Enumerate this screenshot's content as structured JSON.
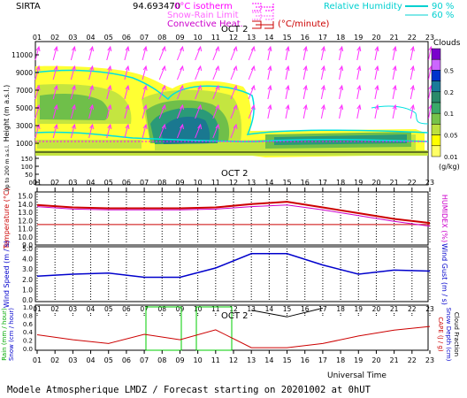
{
  "header": {
    "station": "SIRTA",
    "coords": "94.693470",
    "isotherm_label": "0°C isotherm",
    "snow_rain_label": "Snow-Rain Limit",
    "convective_label": "Convective Heat.",
    "convective_unit": "(°C/minute)",
    "rh_label": "Relative Humidity",
    "rh_90": "90 %",
    "rh_60": "60 %"
  },
  "axes": {
    "hours": [
      "01",
      "02",
      "03",
      "04",
      "05",
      "06",
      "07",
      "08",
      "09",
      "10",
      "11",
      "12",
      "13",
      "14",
      "15",
      "16",
      "17",
      "18",
      "19",
      "20",
      "21",
      "22",
      "23"
    ],
    "date_label": "OCT  2",
    "universal_time": "Universal Time",
    "footer": "Modele Atmospherique LMDZ / Forecast starting on 20201002 at 0hUT"
  },
  "colors": {
    "temperature": "#cc0000",
    "humidex": "#cc00cc",
    "wind_speed": "#0000cc",
    "rain": "#00aa00",
    "cape": "#cc0000",
    "isotherm": "#ff00ff",
    "humidity": "#00e0e0"
  },
  "chart_data": [
    {
      "type": "heatmap",
      "ylabel": "Height  (m a.s.l.)",
      "ylabel2": "Up to 200 m a.s.l.",
      "yticks_upper": [
        "11000",
        "9000",
        "7000",
        "5000",
        "3000",
        "1000"
      ],
      "yticks_lower": [
        "150",
        "100",
        "50",
        "0"
      ],
      "legend_title": "Clouds",
      "legend_unit": "(g/kg)",
      "legend_levels": [
        "0.5",
        "0.2",
        "0.1",
        "0.05",
        "0.01"
      ],
      "legend_colors": [
        "#7a00cc",
        "#cc66ff",
        "#0033cc",
        "#1a7a9a",
        "#2a8a6a",
        "#3aa86a",
        "#77c34a",
        "#bde040",
        "#ffff00",
        "#ffff66"
      ],
      "isotherm_height_m": 1700
    },
    {
      "type": "line",
      "ylabel": "Temperature (°C)",
      "ylabel_right": "HUMIDEX (%)",
      "yticks": [
        "15.0",
        "14.0",
        "13.0",
        "12.0",
        "11.0",
        "10.0",
        "9.0"
      ],
      "ylim": [
        9,
        15.5
      ],
      "series": [
        {
          "name": "Temperature",
          "x": [
            1,
            3,
            5,
            7,
            9,
            11,
            13,
            15,
            17,
            19,
            21,
            23
          ],
          "values": [
            13.9,
            13.6,
            13.5,
            13.5,
            13.5,
            13.6,
            14.0,
            14.3,
            13.6,
            12.9,
            12.2,
            11.7
          ]
        },
        {
          "name": "Humidex",
          "x": [
            1,
            3,
            5,
            7,
            9,
            11,
            13,
            15,
            17,
            19,
            21,
            23
          ],
          "values": [
            13.7,
            13.4,
            13.3,
            13.3,
            13.3,
            13.4,
            13.7,
            13.9,
            13.3,
            12.6,
            11.9,
            11.3
          ]
        },
        {
          "name": "Dewpoint",
          "x": [
            1,
            23
          ],
          "values": [
            11.5,
            11.5
          ]
        }
      ]
    },
    {
      "type": "line",
      "ylabel": "Wind Speed (m / s)",
      "ylabel_right": "Wind Gust (m / s)",
      "yticks": [
        "5.0",
        "4.0",
        "3.0",
        "2.0",
        "1.0",
        "0.0"
      ],
      "ylim": [
        0,
        5
      ],
      "series": [
        {
          "name": "Wind Speed",
          "x": [
            1,
            3,
            5,
            7,
            9,
            11,
            13,
            15,
            17,
            19,
            21,
            23
          ],
          "values": [
            2.3,
            2.5,
            2.6,
            2.2,
            2.2,
            3.1,
            4.5,
            4.5,
            3.4,
            2.5,
            2.9,
            2.8
          ]
        }
      ]
    },
    {
      "type": "line",
      "ylabel": "Rain (mm / hour)",
      "ylabel2": "Snow (cm / hour)",
      "ylabel_right": "CAPE (J / g)",
      "ylabel_right2": "Snow Depth (cm)",
      "ylabel_right3": "Cloud Fraction",
      "yticks": [
        "1.0",
        "0.8",
        "0.6",
        "0.4",
        "0.2",
        "0.0"
      ],
      "ylim": [
        0,
        1
      ],
      "series": [
        {
          "name": "CAPE",
          "x": [
            1,
            3,
            5,
            7,
            9,
            11,
            13,
            15,
            17,
            19,
            21,
            23
          ],
          "values": [
            0.33,
            0.21,
            0.12,
            0.34,
            0.21,
            0.45,
            0.02,
            0.02,
            0.12,
            0.3,
            0.44,
            0.53
          ]
        },
        {
          "name": "Cloud Fraction",
          "x": [
            13,
            15,
            17
          ],
          "values": [
            0.92,
            0.76,
            0.97
          ]
        }
      ]
    }
  ]
}
